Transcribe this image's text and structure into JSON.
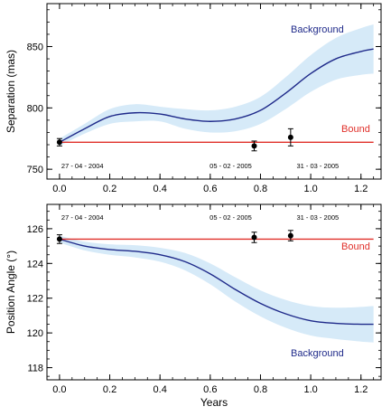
{
  "chart_data": [
    {
      "type": "line",
      "ylabel": "Separation (mas)",
      "xlabel": "",
      "xlim": [
        -0.05,
        1.28
      ],
      "ylim": [
        742,
        885
      ],
      "xticks": [
        0.0,
        0.2,
        0.4,
        0.6,
        0.8,
        1.0,
        1.2
      ],
      "xtick_labels": [
        "0.0",
        "0.2",
        "0.4",
        "0.6",
        "0.8",
        "1.0",
        "1.2"
      ],
      "yticks": [
        750,
        800,
        850
      ],
      "ytick_labels": [
        "750",
        "800",
        "850"
      ],
      "minor_xstep": 0.05,
      "minor_ystep": 10,
      "series": [
        {
          "name": "Background",
          "style": "curve-with-band",
          "x": [
            0.0,
            0.1,
            0.2,
            0.3,
            0.4,
            0.5,
            0.6,
            0.7,
            0.8,
            0.9,
            1.0,
            1.1,
            1.2,
            1.25
          ],
          "y": [
            772,
            783,
            793,
            796,
            795,
            791,
            789,
            791,
            798,
            812,
            828,
            840,
            846,
            848
          ],
          "band_halfwidth": [
            3,
            4,
            6,
            7,
            6,
            8,
            9,
            10,
            11,
            13,
            15,
            17,
            19,
            20
          ],
          "color": "#1f2a8a",
          "band_color": "#d6eaf8"
        },
        {
          "name": "Bound",
          "style": "flat-line",
          "x": [
            0.0,
            1.25
          ],
          "y": [
            772,
            772
          ],
          "color": "#e0302a"
        }
      ],
      "points": {
        "x": [
          0.0,
          0.775,
          0.92
        ],
        "y": [
          772,
          769,
          776
        ],
        "err": [
          3,
          4,
          7
        ],
        "labels": [
          "27 - 04 - 2004",
          "05 - 02 - 2005",
          "31 - 03 - 2005"
        ]
      }
    },
    {
      "type": "line",
      "ylabel": "Position Angle (°)",
      "xlabel": "Years",
      "xlim": [
        -0.05,
        1.28
      ],
      "ylim": [
        117.3,
        127.4
      ],
      "xticks": [
        0.0,
        0.2,
        0.4,
        0.6,
        0.8,
        1.0,
        1.2
      ],
      "xtick_labels": [
        "0.0",
        "0.2",
        "0.4",
        "0.6",
        "0.8",
        "1.0",
        "1.2"
      ],
      "yticks": [
        118,
        120,
        122,
        124,
        126
      ],
      "ytick_labels": [
        "118",
        "120",
        "122",
        "124",
        "126"
      ],
      "minor_xstep": 0.05,
      "minor_ystep": 0.5,
      "series": [
        {
          "name": "Background",
          "style": "curve-with-band",
          "x": [
            0.0,
            0.1,
            0.2,
            0.3,
            0.4,
            0.5,
            0.6,
            0.7,
            0.8,
            0.9,
            1.0,
            1.1,
            1.2,
            1.25
          ],
          "y": [
            125.4,
            125.0,
            124.8,
            124.7,
            124.5,
            124.1,
            123.4,
            122.5,
            121.7,
            121.1,
            120.7,
            120.55,
            120.5,
            120.5
          ],
          "band_halfwidth": [
            0.2,
            0.25,
            0.3,
            0.35,
            0.4,
            0.5,
            0.6,
            0.7,
            0.75,
            0.8,
            0.85,
            0.9,
            1.0,
            1.05
          ],
          "color": "#1f2a8a",
          "band_color": "#d6eaf8"
        },
        {
          "name": "Bound",
          "style": "flat-line",
          "x": [
            0.0,
            1.25
          ],
          "y": [
            125.4,
            125.4
          ],
          "color": "#e0302a"
        }
      ],
      "points": {
        "x": [
          0.0,
          0.775,
          0.92
        ],
        "y": [
          125.4,
          125.5,
          125.6
        ],
        "err": [
          0.25,
          0.3,
          0.3
        ],
        "labels": [
          "27 - 04 - 2004",
          "05 - 02 - 2005",
          "31 - 03 - 2005"
        ]
      }
    }
  ]
}
